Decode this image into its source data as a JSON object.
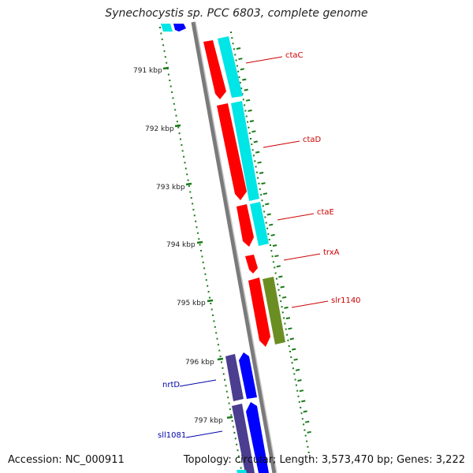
{
  "title": "Synechocystis sp. PCC 6803, complete genome",
  "accession": "Accession: NC_000911",
  "summary": "Topology: circular; Length: 3,573,470 bp; Genes: 3,222",
  "colors": {
    "cds_red": "#ff0000",
    "cds_cyan": "#00e5e5",
    "cds_green": "#6b8e23",
    "cds_blue": "#0000ff",
    "cds_purple": "#4b3d8f",
    "backbone": "#808080",
    "ticks": "#1a7a1a",
    "red_label": "#cc0000",
    "blue_label": "#0000aa"
  },
  "kbp_labels": [
    "791 kbp",
    "792 kbp",
    "793 kbp",
    "794 kbp",
    "795 kbp",
    "796 kbp",
    "797 kbp"
  ],
  "gene_labels": [
    {
      "name": "ctaC",
      "color": "red"
    },
    {
      "name": "ctaD",
      "color": "red"
    },
    {
      "name": "ctaE",
      "color": "red"
    },
    {
      "name": "trxA",
      "color": "red"
    },
    {
      "name": "slr1140",
      "color": "red"
    },
    {
      "name": "nrtD",
      "color": "blue"
    },
    {
      "name": "sll1081",
      "color": "blue"
    }
  ]
}
